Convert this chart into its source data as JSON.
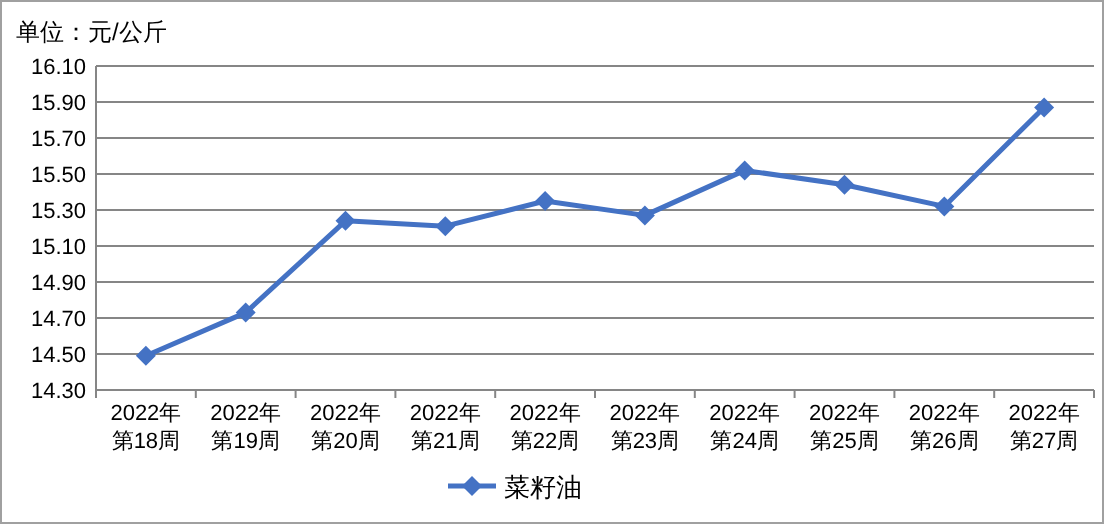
{
  "chart_data": {
    "type": "line",
    "ylabel": "单位：元/公斤",
    "categories": [
      "2022年第18周",
      "2022年第19周",
      "2022年第20周",
      "2022年第21周",
      "2022年第22周",
      "2022年第23周",
      "2022年第24周",
      "2022年第25周",
      "2022年第26周",
      "2022年第27周"
    ],
    "series": [
      {
        "name": "菜籽油",
        "color": "#4472c4",
        "values": [
          14.49,
          14.73,
          15.24,
          15.21,
          15.35,
          15.27,
          15.52,
          15.44,
          15.32,
          15.87
        ]
      }
    ],
    "ylim": [
      14.3,
      16.1
    ],
    "yticks": [
      {
        "value": 14.3,
        "label": "14.30"
      },
      {
        "value": 14.5,
        "label": "14.50"
      },
      {
        "value": 14.7,
        "label": "14.70"
      },
      {
        "value": 14.9,
        "label": "14.90"
      },
      {
        "value": 15.1,
        "label": "15.10"
      },
      {
        "value": 15.3,
        "label": "15.30"
      },
      {
        "value": 15.5,
        "label": "15.50"
      },
      {
        "value": 15.7,
        "label": "15.70"
      },
      {
        "value": 15.9,
        "label": "15.90"
      },
      {
        "value": 16.1,
        "label": "16.10"
      }
    ],
    "grid": "y",
    "marker": "diamond",
    "line_style": "solid",
    "legend": "bottom"
  }
}
